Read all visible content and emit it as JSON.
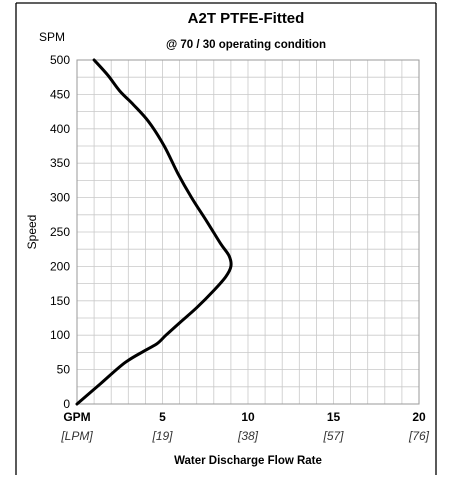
{
  "chart_data": {
    "type": "line",
    "title": "A2T PTFE-Fitted",
    "subtitle": "@ 70 / 30 operating condition",
    "ylabel": "Speed",
    "yunit": "SPM",
    "xlabel": "Water Discharge Flow Rate",
    "xunit": "GPM",
    "xunit_alt": "[LPM]",
    "xlim": [
      0,
      20
    ],
    "ylim": [
      0,
      500
    ],
    "x_ticks": [
      "5",
      "10",
      "15",
      "20"
    ],
    "x_ticks_alt": [
      "[19]",
      "[38]",
      "[57]",
      "[76]"
    ],
    "y_ticks": [
      "0",
      "50",
      "100",
      "150",
      "200",
      "250",
      "300",
      "350",
      "400",
      "450",
      "500"
    ],
    "grid": true,
    "series": [
      {
        "x": [
          0.0,
          1.4,
          2.8,
          4.0,
          4.7,
          5.2,
          6.0,
          7.0,
          8.0,
          8.7,
          9.0,
          8.9,
          8.4,
          7.6,
          6.7,
          5.9,
          5.1,
          4.2,
          3.3,
          2.5,
          1.8,
          1.0
        ],
        "y": [
          0,
          30,
          60,
          78,
          88,
          100,
          118,
          140,
          165,
          185,
          200,
          215,
          233,
          265,
          300,
          335,
          375,
          410,
          435,
          455,
          478,
          500
        ]
      }
    ]
  }
}
